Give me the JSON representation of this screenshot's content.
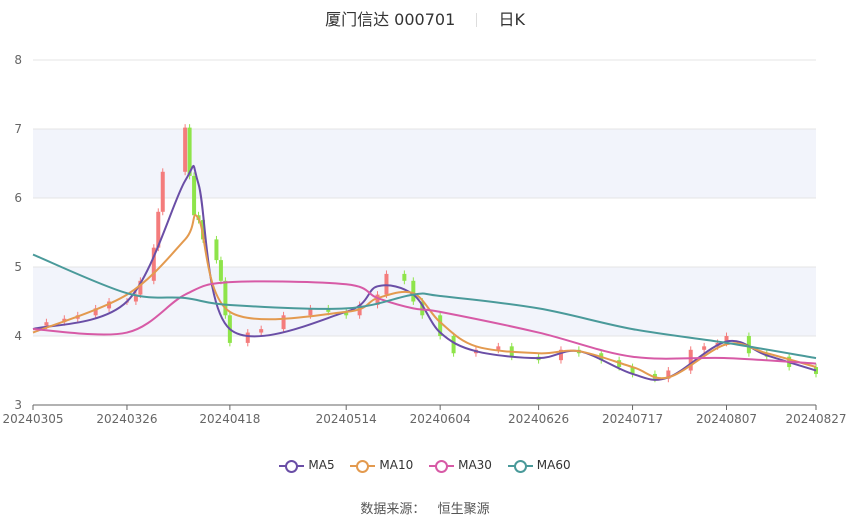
{
  "header": {
    "stock_name": "厦门信达",
    "stock_code": "000701",
    "period": "日K"
  },
  "source": {
    "label": "数据来源：",
    "provider": "恒生聚源"
  },
  "legend": [
    {
      "name": "MA5",
      "color": "#6a4ea6"
    },
    {
      "name": "MA10",
      "color": "#e39a4f"
    },
    {
      "name": "MA30",
      "color": "#d75aa6"
    },
    {
      "name": "MA60",
      "color": "#4a9a9a"
    }
  ],
  "colors": {
    "up": "#f47c7c",
    "down": "#8ee44a",
    "band": "#f2f4fb",
    "grid": "#e4e4e4"
  },
  "chart_data": {
    "type": "candlestick",
    "title": "厦门信达 000701 日K",
    "ylim": [
      3,
      8
    ],
    "yticks": [
      3,
      4,
      5,
      6,
      7,
      8
    ],
    "xlim": [
      "20240305",
      "20240827"
    ],
    "xticks": [
      "20240305",
      "20240326",
      "20240418",
      "20240514",
      "20240604",
      "20240626",
      "20240717",
      "20240807",
      "20240827"
    ],
    "ohlc_close_approx": [
      [
        "20240305",
        4.15
      ],
      [
        "20240308",
        4.2
      ],
      [
        "20240312",
        4.25
      ],
      [
        "20240315",
        4.3
      ],
      [
        "20240319",
        4.4
      ],
      [
        "20240322",
        4.5
      ],
      [
        "20240326",
        4.5
      ],
      [
        "20240328",
        4.6
      ],
      [
        "20240329",
        4.8
      ],
      [
        "20240401",
        5.28
      ],
      [
        "20240402",
        5.8
      ],
      [
        "20240403",
        6.38
      ],
      [
        "20240408",
        7.02
      ],
      [
        "20240409",
        6.32
      ],
      [
        "20240410",
        5.75
      ],
      [
        "20240411",
        5.68
      ],
      [
        "20240412",
        5.4
      ],
      [
        "20240415",
        5.1
      ],
      [
        "20240416",
        4.8
      ],
      [
        "20240417",
        4.3
      ],
      [
        "20240418",
        3.9
      ],
      [
        "20240422",
        4.05
      ],
      [
        "20240425",
        4.1
      ],
      [
        "20240430",
        4.3
      ],
      [
        "20240506",
        4.4
      ],
      [
        "20240510",
        4.35
      ],
      [
        "20240514",
        4.3
      ],
      [
        "20240517",
        4.45
      ],
      [
        "20240521",
        4.6
      ],
      [
        "20240523",
        4.9
      ],
      [
        "20240527",
        4.8
      ],
      [
        "20240529",
        4.5
      ],
      [
        "20240531",
        4.3
      ],
      [
        "20240604",
        4.0
      ],
      [
        "20240607",
        3.75
      ],
      [
        "20240612",
        3.8
      ],
      [
        "20240617",
        3.85
      ],
      [
        "20240620",
        3.7
      ],
      [
        "20240626",
        3.65
      ],
      [
        "20240701",
        3.8
      ],
      [
        "20240705",
        3.75
      ],
      [
        "20240710",
        3.65
      ],
      [
        "20240714",
        3.55
      ],
      [
        "20240717",
        3.45
      ],
      [
        "20240722",
        3.38
      ],
      [
        "20240725",
        3.5
      ],
      [
        "20240730",
        3.8
      ],
      [
        "20240802",
        3.85
      ],
      [
        "20240805",
        3.9
      ],
      [
        "20240807",
        4.0
      ],
      [
        "20240812",
        3.75
      ],
      [
        "20240816",
        3.7
      ],
      [
        "20240821",
        3.55
      ],
      [
        "20240827",
        3.45
      ]
    ],
    "series": [
      {
        "name": "MA5",
        "x": [
          "20240305",
          "20240326",
          "20240408",
          "20240411",
          "20240418",
          "20240514",
          "20240521",
          "20240529",
          "20240604",
          "20240612",
          "20240626",
          "20240705",
          "20240717",
          "20240725",
          "20240807",
          "20240816",
          "20240827"
        ],
        "values": [
          4.1,
          4.5,
          6.25,
          6.2,
          4.1,
          4.35,
          4.72,
          4.6,
          4.05,
          3.78,
          3.68,
          3.78,
          3.45,
          3.4,
          3.92,
          3.72,
          3.5
        ]
      },
      {
        "name": "MA10",
        "x": [
          "20240305",
          "20240326",
          "20240408",
          "20240411",
          "20240418",
          "20240514",
          "20240521",
          "20240529",
          "20240604",
          "20240612",
          "20240626",
          "20240705",
          "20240717",
          "20240725",
          "20240807",
          "20240816",
          "20240827"
        ],
        "values": [
          4.05,
          4.6,
          5.4,
          5.7,
          4.35,
          4.35,
          4.55,
          4.62,
          4.2,
          3.85,
          3.75,
          3.78,
          3.55,
          3.4,
          3.88,
          3.75,
          3.55
        ]
      },
      {
        "name": "MA30",
        "x": [
          "20240305",
          "20240326",
          "20240408",
          "20240418",
          "20240514",
          "20240521",
          "20240529",
          "20240604",
          "20240626",
          "20240717",
          "20240807",
          "20240827"
        ],
        "values": [
          4.1,
          4.05,
          4.6,
          4.78,
          4.75,
          4.55,
          4.4,
          4.35,
          4.05,
          3.7,
          3.68,
          3.6
        ]
      },
      {
        "name": "MA60",
        "x": [
          "20240305",
          "20240326",
          "20240408",
          "20240418",
          "20240514",
          "20240529",
          "20240604",
          "20240626",
          "20240717",
          "20240807",
          "20240827"
        ],
        "values": [
          5.18,
          4.62,
          4.55,
          4.45,
          4.4,
          4.6,
          4.58,
          4.4,
          4.1,
          3.9,
          3.68
        ]
      }
    ]
  }
}
